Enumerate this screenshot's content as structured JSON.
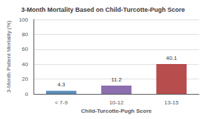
{
  "chart_data": {
    "type": "bar",
    "title": "3-Month Mortality Based on Child-Turcotte-Pugh Score",
    "categories": [
      "< 7-9",
      "10-12",
      "13-15"
    ],
    "values": [
      4.3,
      11.2,
      40.1
    ],
    "colors": [
      "#5b8db8",
      "#8b6fae",
      "#b84d4d"
    ],
    "xlabel": "Child-Turcotte-Pugh Score",
    "ylabel": "3-Month Patient Mortality (%)",
    "ylim": [
      0,
      100
    ],
    "yticks": [
      0,
      20,
      40,
      60,
      80,
      100
    ],
    "grid": true,
    "data_labels": true
  }
}
